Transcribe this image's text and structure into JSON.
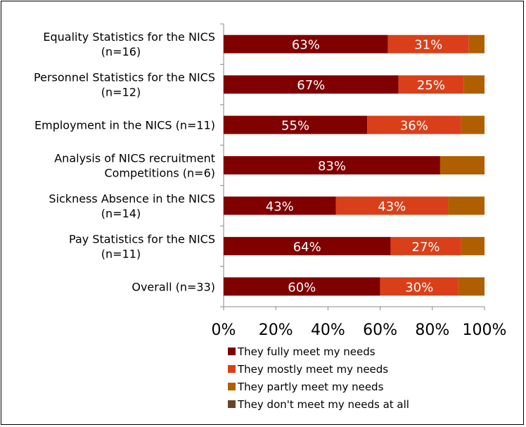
{
  "chart_data": {
    "type": "bar",
    "orientation": "horizontal",
    "stacked": true,
    "categories": [
      [
        "Equality Statistics for the NICS",
        "(n=16)"
      ],
      [
        "Personnel Statistics for the NICS",
        "(n=12)"
      ],
      [
        "Employment in the NICS (n=11)"
      ],
      [
        "Analysis of NICS recruitment",
        "Competitions (n=6)"
      ],
      [
        "Sickness Absence in the NICS",
        "(n=14)"
      ],
      [
        "Pay Statistics for the NICS",
        "(n=11)"
      ],
      [
        "Overall (n=33)"
      ]
    ],
    "series": [
      {
        "name": "They fully meet my needs",
        "color": "#800000",
        "values": [
          63,
          67,
          55,
          83,
          43,
          64,
          60
        ],
        "labels": [
          "63%",
          "67%",
          "55%",
          "83%",
          "43%",
          "64%",
          "60%"
        ]
      },
      {
        "name": "They mostly meet my needs",
        "color": "#D9401A",
        "values": [
          31,
          25,
          36,
          0,
          43,
          27,
          30
        ],
        "labels": [
          "31%",
          "25%",
          "36%",
          "",
          "43%",
          "27%",
          "30%"
        ]
      },
      {
        "name": "They partly meet my needs",
        "color": "#B05F00",
        "values": [
          6,
          8,
          9,
          17,
          14,
          9,
          10
        ],
        "labels": [
          "",
          "",
          "",
          "",
          "",
          "",
          ""
        ]
      },
      {
        "name": "They don't meet my needs at all",
        "color": "#6B4423",
        "values": [
          0,
          0,
          0,
          0,
          0,
          0,
          0
        ],
        "labels": [
          "",
          "",
          "",
          "",
          "",
          "",
          ""
        ]
      }
    ],
    "xlim": [
      0,
      100
    ],
    "xticks": [
      "0%",
      "20%",
      "40%",
      "60%",
      "80%",
      "100%"
    ],
    "grid": false,
    "legend_position": "bottom"
  }
}
